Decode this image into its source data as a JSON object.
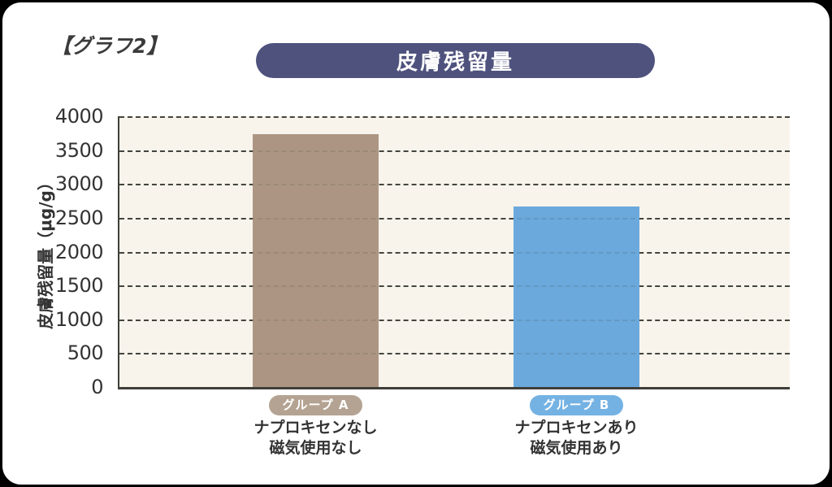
{
  "graph_label": "【グラフ2】",
  "header": {
    "title": "皮膚残留量"
  },
  "colors": {
    "title_pill_bg": "#4e527d",
    "title_text": "#ffffff",
    "plot_bg": "#f8f4ec",
    "axis": "#3f3e39",
    "text": "#333333",
    "card_bg": "#ffffff",
    "outer_bg": "#000000"
  },
  "chart_data": {
    "type": "bar",
    "title": "皮膚残留量",
    "xlabel": "",
    "ylabel": "皮膚残留量（μg/g）",
    "ylim": [
      0,
      4000
    ],
    "yticks": [
      0,
      500,
      1000,
      1500,
      2000,
      2500,
      3000,
      3500,
      4000
    ],
    "grid": "horizontal-dashed",
    "legend_position": "none",
    "categories": [
      "グループ A",
      "グループ B"
    ],
    "values": [
      3740,
      2670
    ],
    "series": [
      {
        "name": "グループ A",
        "value": 3740,
        "bar_color": "#ac9683",
        "badge_color": "#b4a392",
        "sublabel": [
          "ナプロキセンなし",
          "磁気使用なし"
        ]
      },
      {
        "name": "グループ B",
        "value": 2670,
        "bar_color": "#6ba9dc",
        "badge_color": "#74b2e4",
        "sublabel": [
          "ナプロキセンあり",
          "磁気使用あり"
        ]
      }
    ]
  }
}
